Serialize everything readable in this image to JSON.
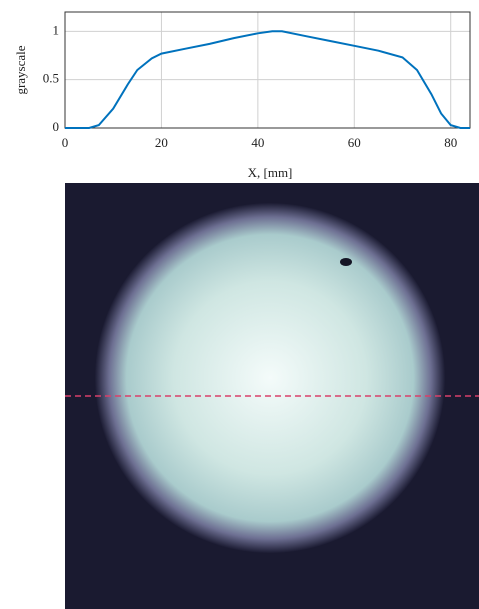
{
  "chart_data": {
    "type": "line",
    "xlabel": "X, [mm]",
    "ylabel": "grayscale",
    "x": [
      0,
      5,
      7,
      10,
      13,
      15,
      18,
      20,
      25,
      30,
      35,
      40,
      43,
      45,
      50,
      55,
      60,
      65,
      70,
      73,
      76,
      78,
      80,
      82,
      84
    ],
    "values": [
      0,
      0,
      0.03,
      0.2,
      0.45,
      0.6,
      0.72,
      0.77,
      0.82,
      0.87,
      0.93,
      0.98,
      1.0,
      1.0,
      0.95,
      0.9,
      0.85,
      0.8,
      0.73,
      0.6,
      0.35,
      0.15,
      0.03,
      0,
      0
    ],
    "color": "#0072bd",
    "xlim": [
      0,
      84
    ],
    "ylim": [
      0,
      1.2
    ],
    "xticks": [
      0,
      20,
      40,
      60,
      80
    ],
    "yticks": [
      0,
      0.5,
      1
    ],
    "grid": true
  }
}
